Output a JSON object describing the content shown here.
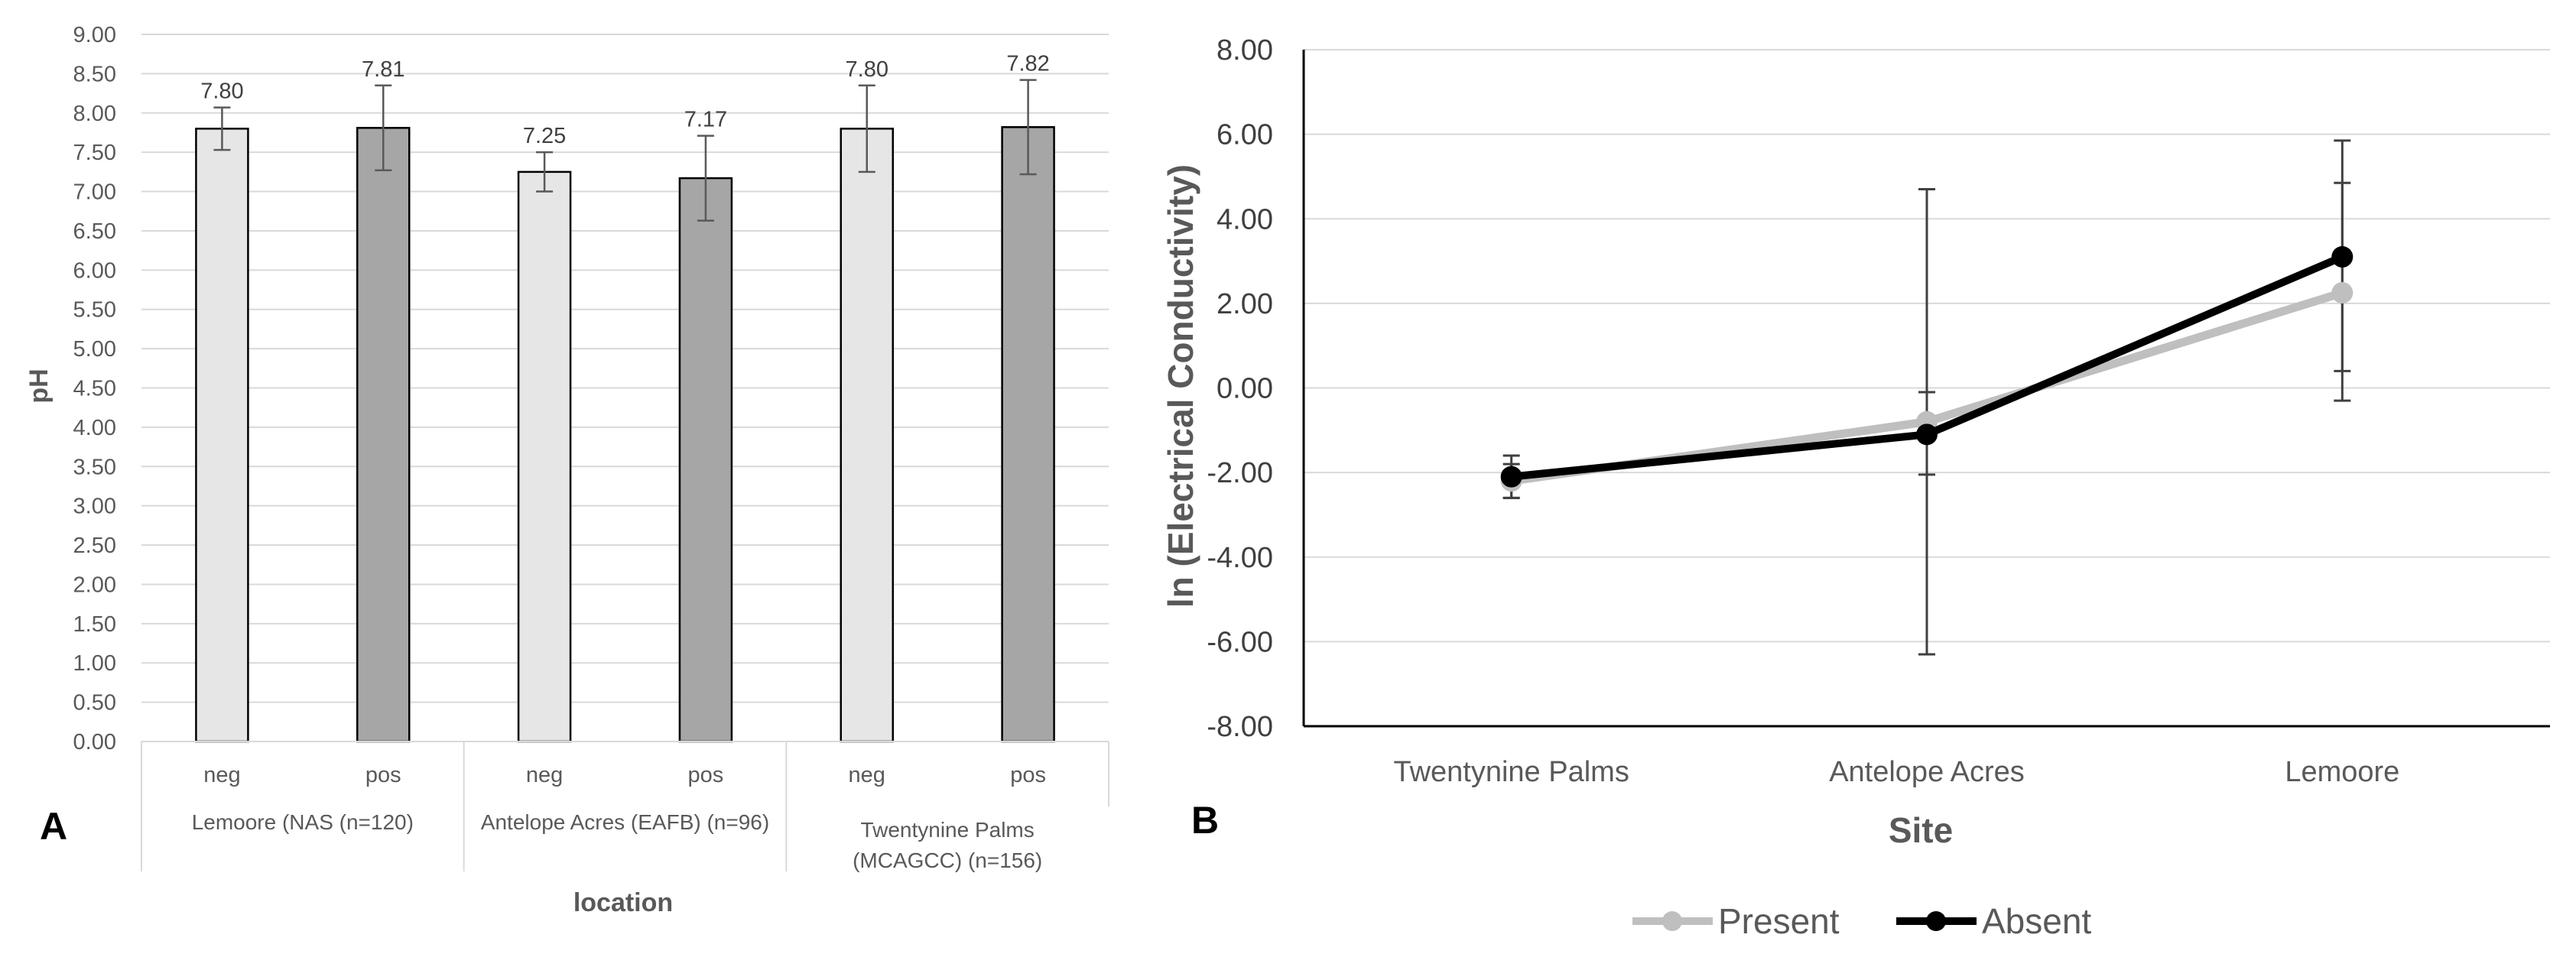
{
  "panels": {
    "a_label": "A",
    "b_label": "B"
  },
  "chart_data": [
    {
      "type": "bar",
      "panel": "A",
      "ylabel": "pH",
      "xlabel": "location",
      "ylim": [
        0,
        9
      ],
      "ytick_step": 0.5,
      "yticks": [
        "0.00",
        "0.50",
        "1.00",
        "1.50",
        "2.00",
        "2.50",
        "3.00",
        "3.50",
        "4.00",
        "4.50",
        "5.00",
        "5.50",
        "6.00",
        "6.50",
        "7.00",
        "7.50",
        "8.00",
        "8.50",
        "9.00"
      ],
      "grid": true,
      "groups": [
        {
          "label_lines": [
            "Lemoore (NAS (n=120)"
          ]
        },
        {
          "label_lines": [
            "Antelope Acres (EAFB) (n=96)"
          ]
        },
        {
          "label_lines": [
            "Twentynine Palms",
            "(MCAGCC) (n=156)"
          ]
        }
      ],
      "bars": [
        {
          "group": 0,
          "category": "neg",
          "value": 7.8,
          "label": "7.80",
          "err_low": 0.27,
          "err_high": 0.27,
          "color": "#e6e6e6"
        },
        {
          "group": 0,
          "category": "pos",
          "value": 7.81,
          "label": "7.81",
          "err_low": 0.54,
          "err_high": 0.54,
          "color": "#a6a6a6"
        },
        {
          "group": 1,
          "category": "neg",
          "value": 7.25,
          "label": "7.25",
          "err_low": 0.25,
          "err_high": 0.25,
          "color": "#e6e6e6"
        },
        {
          "group": 1,
          "category": "pos",
          "value": 7.17,
          "label": "7.17",
          "err_low": 0.54,
          "err_high": 0.54,
          "color": "#a6a6a6"
        },
        {
          "group": 2,
          "category": "neg",
          "value": 7.8,
          "label": "7.80",
          "err_low": 0.55,
          "err_high": 0.55,
          "color": "#e6e6e6"
        },
        {
          "group": 2,
          "category": "pos",
          "value": 7.82,
          "label": "7.82",
          "err_low": 0.6,
          "err_high": 0.6,
          "color": "#a6a6a6"
        }
      ]
    },
    {
      "type": "line",
      "panel": "B",
      "ylabel": "ln (Electrical Conductivity)",
      "xlabel": "Site",
      "ylim": [
        -8,
        8
      ],
      "ytick_step": 2,
      "yticks": [
        "-8.00",
        "-6.00",
        "-4.00",
        "-2.00",
        "0.00",
        "2.00",
        "4.00",
        "6.00",
        "8.00"
      ],
      "grid": true,
      "categories": [
        "Twentynine Palms",
        "Antelope Acres",
        "Lemoore"
      ],
      "legend_position": "bottom",
      "series": [
        {
          "name": "Present",
          "color": "#bfbfbf",
          "values": [
            -2.2,
            -0.8,
            2.25
          ],
          "err_low": [
            0.4,
            5.5,
            2.55
          ],
          "err_high": [
            0.4,
            5.5,
            2.6
          ]
        },
        {
          "name": "Absent",
          "color": "#000000",
          "values": [
            -2.1,
            -1.1,
            3.1
          ],
          "err_low": [
            0.5,
            0.95,
            2.7
          ],
          "err_high": [
            0.5,
            1.0,
            2.75
          ]
        }
      ]
    }
  ]
}
